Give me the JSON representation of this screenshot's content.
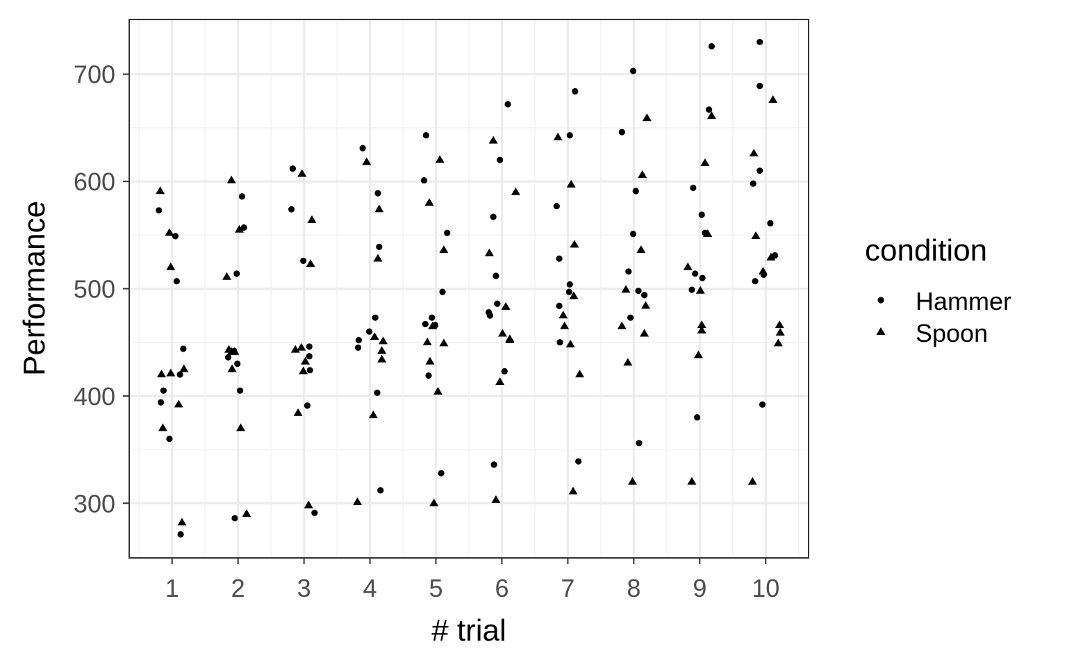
{
  "chart_data": {
    "type": "scatter",
    "xlabel": "# trial",
    "ylabel": "Performance",
    "xlim": [
      0.35,
      10.65
    ],
    "ylim": [
      249,
      751
    ],
    "x_ticks": [
      1,
      2,
      3,
      4,
      5,
      6,
      7,
      8,
      9,
      10
    ],
    "y_ticks": [
      300,
      400,
      500,
      600,
      700
    ],
    "grid": true,
    "legend": {
      "title": "condition",
      "position": "right"
    },
    "colors": {
      "points": "#000000",
      "panel_border": "#333333",
      "grid_major": "#ebebeb",
      "grid_minor": "#f2f2f2",
      "tick_text": "#4d4d4d"
    },
    "series": [
      {
        "name": "Hammer",
        "shape": "circle",
        "points": [
          [
            0.8,
            573
          ],
          [
            0.83,
            394
          ],
          [
            0.87,
            405
          ],
          [
            0.96,
            360
          ],
          [
            1.05,
            549
          ],
          [
            1.07,
            507
          ],
          [
            1.12,
            420
          ],
          [
            1.13,
            271
          ],
          [
            1.17,
            444
          ],
          [
            1.85,
            436
          ],
          [
            1.95,
            286
          ],
          [
            1.98,
            514
          ],
          [
            1.94,
            442
          ],
          [
            1.99,
            430
          ],
          [
            2.03,
            405
          ],
          [
            2.06,
            586
          ],
          [
            2.09,
            557
          ],
          [
            2.81,
            574
          ],
          [
            2.83,
            612
          ],
          [
            2.99,
            526
          ],
          [
            3.05,
            391
          ],
          [
            3.08,
            437
          ],
          [
            3.08,
            446
          ],
          [
            3.09,
            424
          ],
          [
            3.16,
            291
          ],
          [
            3.83,
            452
          ],
          [
            3.82,
            445
          ],
          [
            3.89,
            631
          ],
          [
            3.99,
            460
          ],
          [
            4.08,
            473
          ],
          [
            4.12,
            589
          ],
          [
            4.11,
            403
          ],
          [
            4.14,
            539
          ],
          [
            4.16,
            312
          ],
          [
            4.82,
            601
          ],
          [
            4.84,
            467
          ],
          [
            4.85,
            643
          ],
          [
            4.89,
            419
          ],
          [
            4.94,
            473
          ],
          [
            4.99,
            466
          ],
          [
            5.08,
            328
          ],
          [
            5.1,
            497
          ],
          [
            5.17,
            552
          ],
          [
            5.8,
            478
          ],
          [
            5.82,
            475
          ],
          [
            5.88,
            336
          ],
          [
            5.87,
            567
          ],
          [
            5.91,
            512
          ],
          [
            5.93,
            486
          ],
          [
            5.97,
            620
          ],
          [
            6.04,
            423
          ],
          [
            6.09,
            672
          ],
          [
            6.83,
            577
          ],
          [
            6.87,
            528
          ],
          [
            6.87,
            484
          ],
          [
            6.88,
            450
          ],
          [
            7.02,
            497
          ],
          [
            7.03,
            504
          ],
          [
            7.03,
            643
          ],
          [
            7.11,
            684
          ],
          [
            7.16,
            339
          ],
          [
            7.82,
            646
          ],
          [
            7.92,
            516
          ],
          [
            7.95,
            473
          ],
          [
            7.99,
            551
          ],
          [
            7.99,
            703
          ],
          [
            8.03,
            591
          ],
          [
            8.07,
            498
          ],
          [
            8.08,
            356
          ],
          [
            8.16,
            494
          ],
          [
            8.88,
            499
          ],
          [
            8.9,
            594
          ],
          [
            8.93,
            514
          ],
          [
            8.96,
            380
          ],
          [
            9.03,
            569
          ],
          [
            9.04,
            510
          ],
          [
            9.08,
            552
          ],
          [
            9.14,
            667
          ],
          [
            9.18,
            726
          ],
          [
            9.81,
            598
          ],
          [
            9.84,
            507
          ],
          [
            9.91,
            730
          ],
          [
            9.91,
            610
          ],
          [
            9.91,
            689
          ],
          [
            9.95,
            392
          ],
          [
            9.97,
            513
          ],
          [
            10.07,
            561
          ],
          [
            10.14,
            531
          ]
        ]
      },
      {
        "name": "Spoon",
        "shape": "triangle",
        "points": [
          [
            0.82,
            591
          ],
          [
            0.84,
            420
          ],
          [
            0.86,
            370
          ],
          [
            0.96,
            552
          ],
          [
            0.98,
            421
          ],
          [
            0.98,
            520
          ],
          [
            1.1,
            392
          ],
          [
            1.15,
            282
          ],
          [
            1.18,
            425
          ],
          [
            1.83,
            511
          ],
          [
            1.86,
            443
          ],
          [
            1.9,
            441
          ],
          [
            1.9,
            601
          ],
          [
            1.91,
            425
          ],
          [
            1.95,
            441
          ],
          [
            2.02,
            555
          ],
          [
            2.04,
            370
          ],
          [
            2.13,
            290
          ],
          [
            2.87,
            443
          ],
          [
            2.91,
            384
          ],
          [
            2.96,
            445
          ],
          [
            2.97,
            607
          ],
          [
            2.99,
            423
          ],
          [
            3.02,
            432
          ],
          [
            3.07,
            298
          ],
          [
            3.1,
            523
          ],
          [
            3.12,
            564
          ],
          [
            3.81,
            301
          ],
          [
            3.95,
            618
          ],
          [
            4.05,
            382
          ],
          [
            4.07,
            455
          ],
          [
            4.12,
            528
          ],
          [
            4.14,
            574
          ],
          [
            4.18,
            442
          ],
          [
            4.18,
            434
          ],
          [
            4.2,
            451
          ],
          [
            4.87,
            450
          ],
          [
            4.9,
            580
          ],
          [
            4.91,
            432
          ],
          [
            4.97,
            300
          ],
          [
            5.03,
            404
          ],
          [
            5.06,
            620
          ],
          [
            5.12,
            449
          ],
          [
            5.12,
            536
          ],
          [
            4.95,
            465
          ],
          [
            5.81,
            533
          ],
          [
            5.87,
            638
          ],
          [
            5.91,
            303
          ],
          [
            5.97,
            413
          ],
          [
            6.01,
            458
          ],
          [
            6.06,
            483
          ],
          [
            6.12,
            453
          ],
          [
            6.12,
            452
          ],
          [
            6.21,
            590
          ],
          [
            6.85,
            641
          ],
          [
            6.93,
            475
          ],
          [
            6.95,
            465
          ],
          [
            7.04,
            448
          ],
          [
            7.05,
            597
          ],
          [
            7.09,
            493
          ],
          [
            7.1,
            541
          ],
          [
            7.18,
            420
          ],
          [
            7.08,
            311
          ],
          [
            7.82,
            465
          ],
          [
            7.88,
            499
          ],
          [
            7.91,
            431
          ],
          [
            7.98,
            320
          ],
          [
            8.11,
            536
          ],
          [
            8.13,
            606
          ],
          [
            8.16,
            458
          ],
          [
            8.18,
            484
          ],
          [
            8.2,
            659
          ],
          [
            8.82,
            520
          ],
          [
            8.88,
            320
          ],
          [
            8.98,
            438
          ],
          [
            9.01,
            498
          ],
          [
            9.03,
            466
          ],
          [
            9.03,
            461
          ],
          [
            9.08,
            617
          ],
          [
            9.12,
            551
          ],
          [
            9.18,
            661
          ],
          [
            9.8,
            320
          ],
          [
            9.82,
            626
          ],
          [
            9.85,
            549
          ],
          [
            9.96,
            516
          ],
          [
            10.08,
            529
          ],
          [
            10.11,
            676
          ],
          [
            10.19,
            449
          ],
          [
            10.21,
            466
          ],
          [
            10.22,
            459
          ]
        ]
      }
    ]
  }
}
